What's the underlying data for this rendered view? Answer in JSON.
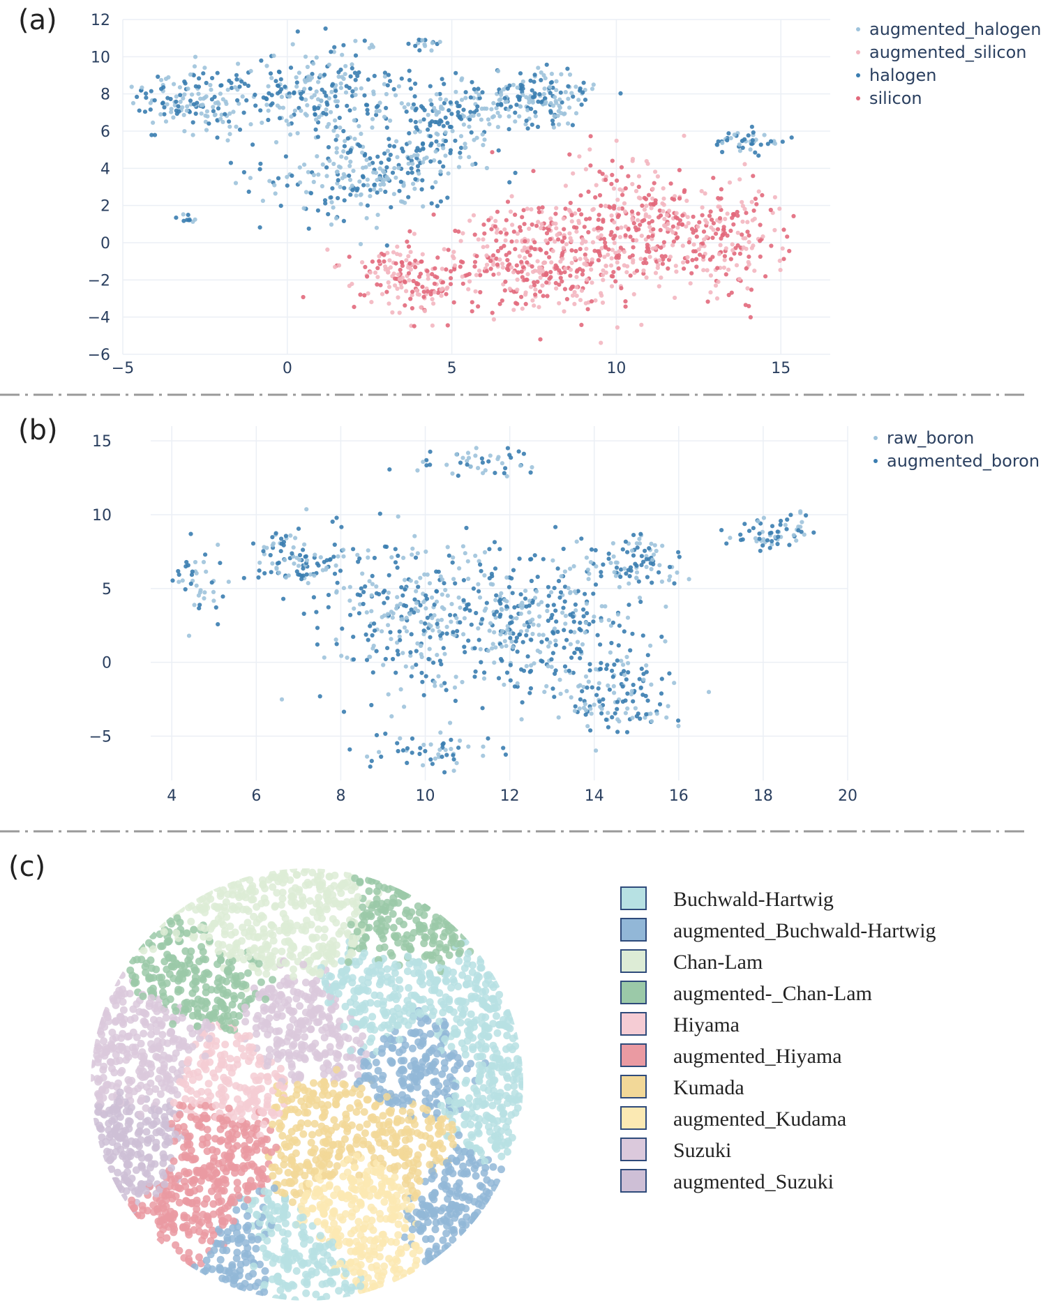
{
  "chart_data": [
    {
      "id": "a",
      "panel_label": "(a)",
      "type": "scatter",
      "xlim": [
        -5,
        16.5
      ],
      "ylim": [
        -6,
        12
      ],
      "x_ticks": [
        -5,
        0,
        5,
        10,
        15
      ],
      "x_tick_labels": [
        "−5",
        "0",
        "5",
        "10",
        "15"
      ],
      "y_ticks": [
        -6,
        -4,
        -2,
        0,
        2,
        4,
        6,
        8,
        10,
        12
      ],
      "y_tick_labels": [
        "−6",
        "−4",
        "−2",
        "0",
        "2",
        "4",
        "6",
        "8",
        "10",
        "12"
      ],
      "legend": [
        {
          "name": "augmented_halogen",
          "color": "#9ec3dc"
        },
        {
          "name": "augmented_silicon",
          "color": "#f3b6c0"
        },
        {
          "name": "halogen",
          "color": "#3a7db0"
        },
        {
          "name": "silicon",
          "color": "#e2697c"
        }
      ],
      "clusters": [
        {
          "series": [
            0,
            2
          ],
          "cx": -2.8,
          "cy": 7.6,
          "sx": 1.1,
          "sy": 1.1,
          "n": 150
        },
        {
          "series": [
            0,
            2
          ],
          "cx": 0.7,
          "cy": 8.0,
          "sx": 1.6,
          "sy": 1.5,
          "n": 220
        },
        {
          "series": [
            0,
            2
          ],
          "cx": 2.3,
          "cy": 3.6,
          "sx": 1.8,
          "sy": 1.6,
          "n": 220
        },
        {
          "series": [
            0,
            2
          ],
          "cx": 4.7,
          "cy": 6.6,
          "sx": 1.6,
          "sy": 1.9,
          "n": 200
        },
        {
          "series": [
            0,
            2
          ],
          "cx": 7.6,
          "cy": 7.8,
          "sx": 1.2,
          "sy": 1.0,
          "n": 150
        },
        {
          "series": [
            0,
            2
          ],
          "cx": 14.0,
          "cy": 5.5,
          "sx": 0.7,
          "sy": 0.4,
          "n": 45
        },
        {
          "series": [
            0,
            2
          ],
          "cx": -3.0,
          "cy": 1.3,
          "sx": 0.2,
          "sy": 0.15,
          "n": 10
        },
        {
          "series": [
            0,
            2
          ],
          "cx": 4.1,
          "cy": 10.7,
          "sx": 0.35,
          "sy": 0.2,
          "n": 15
        },
        {
          "series": [
            1,
            3
          ],
          "cx": 3.7,
          "cy": -1.8,
          "sx": 1.3,
          "sy": 1.2,
          "n": 170
        },
        {
          "series": [
            1,
            3
          ],
          "cx": 7.4,
          "cy": -1.0,
          "sx": 1.7,
          "sy": 2.0,
          "n": 330
        },
        {
          "series": [
            1,
            3
          ],
          "cx": 10.4,
          "cy": 0.8,
          "sx": 1.7,
          "sy": 2.4,
          "n": 330
        },
        {
          "series": [
            1,
            3
          ],
          "cx": 13.3,
          "cy": 0.3,
          "sx": 1.2,
          "sy": 1.9,
          "n": 190
        }
      ]
    },
    {
      "id": "b",
      "panel_label": "(b)",
      "type": "scatter",
      "xlim": [
        3.5,
        20
      ],
      "ylim": [
        -8,
        16
      ],
      "x_ticks": [
        4,
        6,
        8,
        10,
        12,
        14,
        16,
        18,
        20
      ],
      "x_tick_labels": [
        "4",
        "6",
        "8",
        "10",
        "12",
        "14",
        "16",
        "18",
        "20"
      ],
      "y_ticks": [
        -5,
        0,
        5,
        10,
        15
      ],
      "y_tick_labels": [
        "−5",
        "0",
        "5",
        "10",
        "15"
      ],
      "legend": [
        {
          "name": "raw_boron",
          "color": "#9ec3dc"
        },
        {
          "name": "augmented_boron",
          "color": "#3a7db0"
        }
      ],
      "clusters": [
        {
          "series": [
            0,
            1
          ],
          "cx": 4.6,
          "cy": 5.5,
          "sx": 0.5,
          "sy": 2.0,
          "n": 40
        },
        {
          "series": [
            0,
            1
          ],
          "cx": 7.0,
          "cy": 7.0,
          "sx": 0.9,
          "sy": 1.3,
          "n": 110
        },
        {
          "series": [
            0,
            1
          ],
          "cx": 10.0,
          "cy": 3.0,
          "sx": 1.6,
          "sy": 3.5,
          "n": 330
        },
        {
          "series": [
            0,
            1
          ],
          "cx": 13.0,
          "cy": 2.5,
          "sx": 1.5,
          "sy": 3.5,
          "n": 300
        },
        {
          "series": [
            0,
            1
          ],
          "cx": 14.6,
          "cy": -2.5,
          "sx": 0.8,
          "sy": 1.5,
          "n": 110
        },
        {
          "series": [
            0,
            1
          ],
          "cx": 15.0,
          "cy": 6.8,
          "sx": 0.8,
          "sy": 1.2,
          "n": 80
        },
        {
          "series": [
            0,
            1
          ],
          "cx": 18.2,
          "cy": 8.8,
          "sx": 0.5,
          "sy": 0.8,
          "n": 60
        },
        {
          "series": [
            0,
            1
          ],
          "cx": 11.2,
          "cy": 13.6,
          "sx": 1.0,
          "sy": 0.6,
          "n": 45
        },
        {
          "series": [
            0,
            1
          ],
          "cx": 10.0,
          "cy": -6.0,
          "sx": 1.0,
          "sy": 0.8,
          "n": 50
        }
      ]
    },
    {
      "id": "c",
      "panel_label": "(c)",
      "type": "scatter",
      "legend": [
        {
          "name": "Buchwald-Hartwig",
          "color": "#b7e1e3"
        },
        {
          "name": "augmented_Buchwald-Hartwig",
          "color": "#92b7d7"
        },
        {
          "name": "Chan-Lam",
          "color": "#ddecd6"
        },
        {
          "name": "augmented-_Chan-Lam",
          "color": "#9bc9a8"
        },
        {
          "name": "Hiyama",
          "color": "#f5ccd4"
        },
        {
          "name": "augmented_Hiyama",
          "color": "#ea9aa2"
        },
        {
          "name": "Kumada",
          "color": "#f2d898"
        },
        {
          "name": "augmented_Kudama",
          "color": "#fbe9b3"
        },
        {
          "name": "Suzuki",
          "color": "#dbc9dc"
        },
        {
          "name": "augmented_Suzuki",
          "color": "#cebfd6"
        }
      ]
    }
  ]
}
